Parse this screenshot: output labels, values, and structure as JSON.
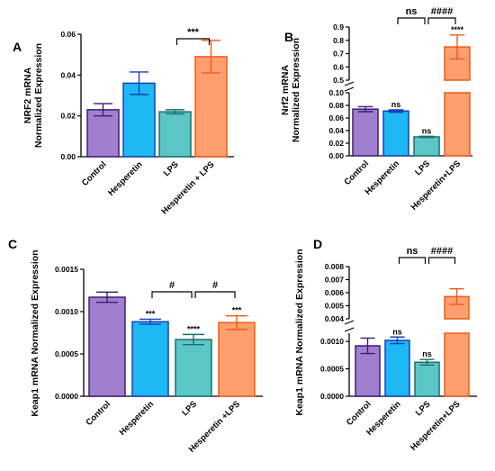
{
  "chart_data": [
    {
      "panel": "A",
      "type": "bar",
      "ylabel": [
        "NRF2 mRNA",
        "Normalized Expression"
      ],
      "categories": [
        "Control",
        "Hesperetin",
        "LPS",
        "Hesperetin + LPS"
      ],
      "values": [
        0.023,
        0.036,
        0.022,
        0.049
      ],
      "errors": [
        0.003,
        0.0055,
        0.001,
        0.008
      ],
      "ylim": [
        0,
        0.06
      ],
      "yticks": [
        0,
        0.02,
        0.04,
        0.06
      ],
      "ytick_labels": [
        "0.00",
        "0.02",
        "0.04",
        "0.06"
      ],
      "bar_colors": [
        "#a07fcf",
        "#1eb8f5",
        "#5cc6c6",
        "#ff9f6f"
      ],
      "edge_colors": [
        "#3c1d78",
        "#1540b8",
        "#1a6e70",
        "#f05a14"
      ],
      "bar_annotations": [
        "",
        "",
        "",
        ""
      ],
      "brackets": [
        {
          "from": 2,
          "to": 3,
          "label": "***"
        }
      ]
    },
    {
      "panel": "B",
      "type": "bar",
      "ylabel": [
        "Nrf2 mRNA",
        "Normalized Expression"
      ],
      "categories": [
        "Control",
        "Hesperetin",
        "LPS",
        "Hesperetin+LPS"
      ],
      "values": [
        0.074,
        0.071,
        0.03,
        0.75
      ],
      "errors": [
        0.004,
        0.002,
        0.001,
        0.09
      ],
      "broken_axis": {
        "lower": [
          0,
          0.1
        ],
        "upper": [
          0.5,
          0.9
        ]
      },
      "yticks_lower": [
        0,
        0.02,
        0.04,
        0.06,
        0.08,
        0.1
      ],
      "ytick_labels_lower": [
        "0.00",
        "0.02",
        "0.04",
        "0.06",
        "0.08",
        "0.10"
      ],
      "yticks_upper": [
        0.5,
        0.6,
        0.7,
        0.8,
        0.9
      ],
      "ytick_labels_upper": [
        "0.5",
        "0.6",
        "0.7",
        "0.8",
        "0.9"
      ],
      "bar_colors": [
        "#a07fcf",
        "#1eb8f5",
        "#5cc6c6",
        "#ff9f6f"
      ],
      "edge_colors": [
        "#3c1d78",
        "#1540b8",
        "#1a6e70",
        "#f05a14"
      ],
      "bar_annotations": [
        "",
        "ns",
        "ns",
        "****"
      ],
      "brackets": [
        {
          "from": 1,
          "to": 2,
          "label": "ns"
        },
        {
          "from": 2,
          "to": 3,
          "label": "####"
        }
      ]
    },
    {
      "panel": "C",
      "type": "bar",
      "ylabel": [
        "Keap1 mRNA Normalized Expression"
      ],
      "categories": [
        "Control",
        "Hesperetin",
        "LPS",
        "Hesperetin +LPS"
      ],
      "values": [
        0.00117,
        0.00088,
        0.00067,
        0.00087
      ],
      "errors": [
        6e-05,
        3e-05,
        6e-05,
        8e-05
      ],
      "ylim": [
        0,
        0.0015
      ],
      "yticks": [
        0,
        0.0005,
        0.001,
        0.0015
      ],
      "ytick_labels": [
        "0.0000",
        "0.0005",
        "0.0010",
        "0.0015"
      ],
      "bar_colors": [
        "#a07fcf",
        "#1eb8f5",
        "#5cc6c6",
        "#ff9f6f"
      ],
      "edge_colors": [
        "#3c1d78",
        "#1540b8",
        "#1a6e70",
        "#f05a14"
      ],
      "bar_annotations": [
        "",
        "***",
        "****",
        "***"
      ],
      "brackets": [
        {
          "from": 1,
          "to": 2,
          "label": "#"
        },
        {
          "from": 2,
          "to": 3,
          "label": "#"
        }
      ]
    },
    {
      "panel": "D",
      "type": "bar",
      "ylabel": [
        "Keap1 mRNA Normalized Expression"
      ],
      "categories": [
        "Control",
        "Hesperetin",
        "LPS",
        "Hesperetin+LPS"
      ],
      "values": [
        0.00092,
        0.00102,
        0.00062,
        0.0057
      ],
      "errors": [
        0.00014,
        6e-05,
        5e-05,
        0.0006
      ],
      "broken_axis": {
        "lower": [
          0,
          0.00115
        ],
        "upper": [
          0.004,
          0.008
        ]
      },
      "yticks_lower": [
        0,
        0.0005,
        0.001
      ],
      "ytick_labels_lower": [
        "0.0000",
        "0.0005",
        "0.0010"
      ],
      "yticks_upper": [
        0.004,
        0.005,
        0.006,
        0.007,
        0.008
      ],
      "ytick_labels_upper": [
        "0.004",
        "0.005",
        "0.006",
        "0.007",
        "0.008"
      ],
      "bar_colors": [
        "#a07fcf",
        "#1eb8f5",
        "#5cc6c6",
        "#ff9f6f"
      ],
      "edge_colors": [
        "#3c1d78",
        "#1540b8",
        "#1a6e70",
        "#f05a14"
      ],
      "bar_annotations": [
        "",
        "ns",
        "ns",
        ""
      ],
      "brackets": [
        {
          "from": 1,
          "to": 2,
          "label": "ns"
        },
        {
          "from": 2,
          "to": 3,
          "label": "####"
        }
      ]
    }
  ]
}
